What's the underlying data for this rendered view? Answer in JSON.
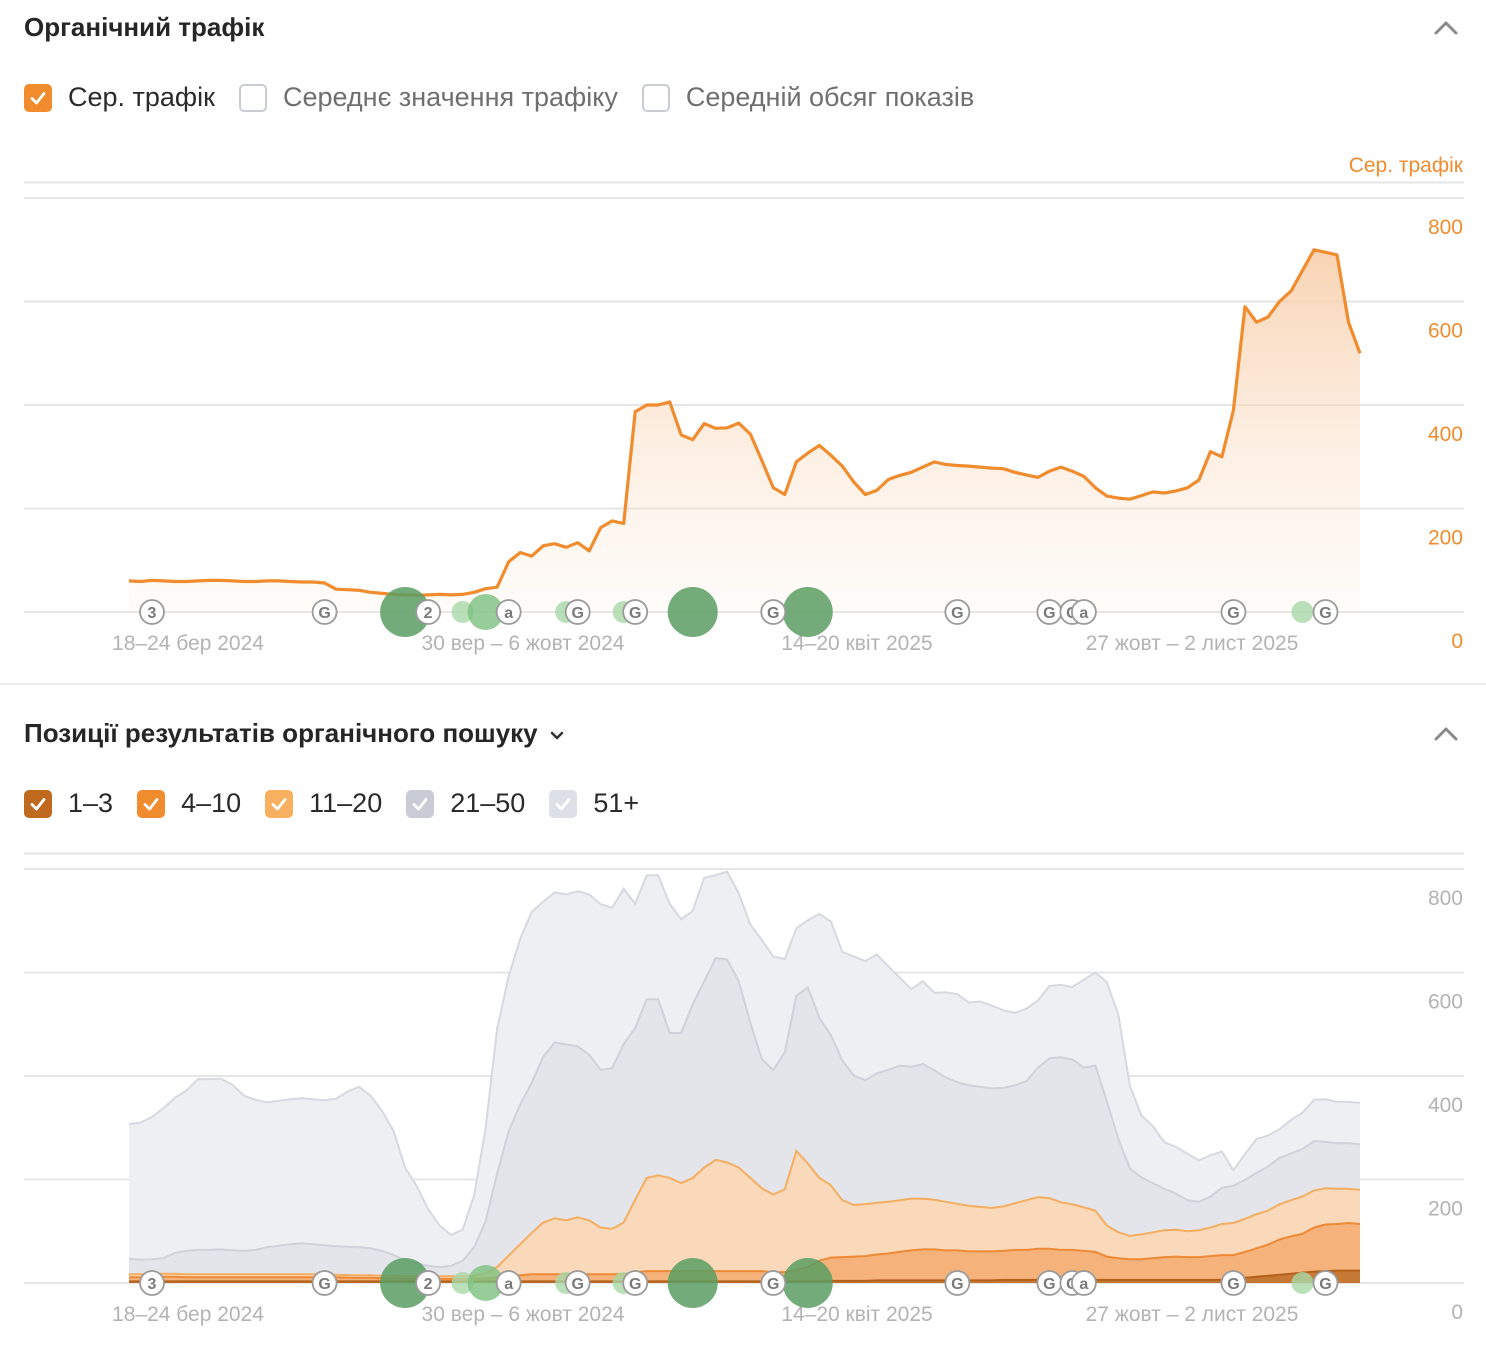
{
  "traffic_section": {
    "title": "Органічний трафік",
    "checkboxes": [
      {
        "label": "Сер. трафік",
        "checked": true,
        "color": "#f08c2e"
      },
      {
        "label": "Середнє значення трафіку",
        "checked": false
      },
      {
        "label": "Середній обсяг показів",
        "checked": false
      }
    ],
    "axis_title": "Сер. трафік"
  },
  "positions_section": {
    "title": "Позиції результатів органічного пошуку",
    "checkboxes": [
      {
        "label": "1–3",
        "checked": true,
        "color": "#c06a1f"
      },
      {
        "label": "4–10",
        "checked": true,
        "color": "#f08c2e"
      },
      {
        "label": "11–20",
        "checked": true,
        "color": "#f7b060"
      },
      {
        "label": "21–50",
        "checked": true,
        "color": "#c9ccd6"
      },
      {
        "label": "51+",
        "checked": true,
        "color": "#dde0e6"
      }
    ]
  },
  "x_ticks": [
    "18–24 бер 2024",
    "30 вер – 6 жовт 2024",
    "14–20 квіт 2025",
    "27 жовт – 2 лист 2025"
  ],
  "y_ticks": [
    "0",
    "200",
    "400",
    "600",
    "800"
  ],
  "markers": [
    {
      "label": "3",
      "kind": "badge",
      "week": 2
    },
    {
      "label": "G",
      "kind": "badge",
      "week": 17
    },
    {
      "label": "",
      "kind": "dot-large",
      "week": 24
    },
    {
      "label": "2",
      "kind": "badge",
      "week": 26
    },
    {
      "label": "",
      "kind": "dot-small",
      "week": 29
    },
    {
      "label": "",
      "kind": "dot-medium",
      "week": 31
    },
    {
      "label": "a",
      "kind": "badge",
      "week": 33
    },
    {
      "label": "",
      "kind": "dot-small",
      "week": 38
    },
    {
      "label": "G",
      "kind": "badge",
      "week": 39
    },
    {
      "label": "",
      "kind": "dot-small",
      "week": 43
    },
    {
      "label": "G",
      "kind": "badge",
      "week": 44
    },
    {
      "label": "",
      "kind": "dot-large",
      "week": 49
    },
    {
      "label": "G",
      "kind": "badge",
      "week": 56
    },
    {
      "label": "",
      "kind": "dot-large",
      "week": 59
    },
    {
      "label": "G",
      "kind": "badge",
      "week": 72
    },
    {
      "label": "G",
      "kind": "badge",
      "week": 80
    },
    {
      "label": "G",
      "kind": "badge",
      "week": 82
    },
    {
      "label": "a",
      "kind": "badge",
      "week": 83
    },
    {
      "label": "G",
      "kind": "badge",
      "week": 96
    },
    {
      "label": "",
      "kind": "dot-small",
      "week": 102
    },
    {
      "label": "G",
      "kind": "badge",
      "week": 104
    }
  ],
  "colors": {
    "accent": "#f08c2e",
    "marker_green": "#5a9e63",
    "grid": "#e8e8e8",
    "axis_text": "#b3b3b3"
  },
  "chart_data": [
    {
      "type": "area",
      "x_start_label": "18–24 бер 2024",
      "x_unit": "week",
      "ylim": [
        0,
        800
      ],
      "series": [
        {
          "name": "Сер. трафік",
          "color": "#f08c2e",
          "values": [
            60,
            59,
            61,
            60,
            59,
            59,
            60,
            61,
            61,
            60,
            59,
            59,
            60,
            60,
            59,
            58,
            58,
            56,
            44,
            43,
            42,
            38,
            36,
            34,
            33,
            32,
            33,
            34,
            33,
            34,
            38,
            45,
            48,
            97,
            115,
            108,
            128,
            132,
            125,
            134,
            118,
            163,
            176,
            171,
            387,
            400,
            400,
            406,
            342,
            333,
            364,
            355,
            356,
            365,
            344,
            293,
            240,
            227,
            290,
            307,
            322,
            303,
            282,
            251,
            227,
            235,
            256,
            264,
            270,
            280,
            290,
            285,
            283,
            282,
            280,
            278,
            277,
            270,
            265,
            260,
            272,
            280,
            272,
            262,
            240,
            224,
            220,
            218,
            225,
            232,
            230,
            234,
            240,
            255,
            310,
            300,
            390,
            590,
            560,
            570,
            600,
            620,
            660,
            700,
            695,
            690,
            560,
            500
          ]
        }
      ]
    },
    {
      "type": "area",
      "stacked": true,
      "x_start_label": "18–24 бер 2024",
      "x_unit": "week",
      "ylim": [
        0,
        800
      ],
      "series": [
        {
          "name": "1–3",
          "color": "#c06a1f",
          "values": [
            3,
            3,
            3,
            3,
            3,
            3,
            3,
            3,
            3,
            3,
            3,
            3,
            3,
            3,
            3,
            3,
            3,
            3,
            3,
            3,
            3,
            3,
            3,
            3,
            3,
            3,
            3,
            3,
            3,
            3,
            3,
            3,
            3,
            3,
            3,
            3,
            3,
            3,
            3,
            3,
            3,
            3,
            3,
            3,
            3,
            3,
            3,
            3,
            3,
            3,
            3,
            3,
            3,
            3,
            3,
            3,
            3,
            3,
            3,
            3,
            3,
            4,
            4,
            4,
            4,
            5,
            5,
            5,
            5,
            5,
            5,
            5,
            5,
            5,
            5,
            5,
            6,
            6,
            6,
            6,
            6,
            6,
            6,
            6,
            6,
            6,
            6,
            6,
            6,
            6,
            6,
            6,
            6,
            6,
            6,
            6,
            8,
            10,
            12,
            14,
            16,
            18,
            20,
            22,
            23,
            24,
            24,
            24
          ]
        },
        {
          "name": "4–10",
          "color": "#f08c2e",
          "values": [
            8,
            8,
            9,
            9,
            9,
            8,
            8,
            8,
            8,
            8,
            8,
            8,
            8,
            8,
            8,
            8,
            8,
            8,
            8,
            7,
            7,
            7,
            6,
            6,
            5,
            5,
            5,
            5,
            5,
            5,
            5,
            6,
            8,
            10,
            12,
            14,
            14,
            14,
            14,
            14,
            14,
            14,
            14,
            14,
            18,
            20,
            20,
            20,
            20,
            20,
            20,
            20,
            20,
            20,
            20,
            20,
            18,
            18,
            22,
            28,
            40,
            45,
            46,
            47,
            48,
            50,
            52,
            55,
            58,
            60,
            60,
            58,
            58,
            56,
            56,
            56,
            56,
            58,
            58,
            60,
            60,
            58,
            58,
            56,
            54,
            45,
            42,
            40,
            40,
            42,
            44,
            45,
            44,
            44,
            46,
            48,
            46,
            50,
            55,
            60,
            68,
            72,
            75,
            85,
            90,
            90,
            92,
            90
          ]
        },
        {
          "name": "11–20",
          "color": "#f7b060",
          "values": [
            6,
            6,
            6,
            6,
            6,
            6,
            6,
            6,
            6,
            6,
            6,
            6,
            6,
            6,
            6,
            6,
            6,
            6,
            5,
            5,
            5,
            5,
            5,
            5,
            5,
            5,
            5,
            5,
            5,
            5,
            6,
            10,
            20,
            40,
            60,
            80,
            100,
            108,
            104,
            110,
            104,
            90,
            88,
            100,
            140,
            180,
            185,
            180,
            170,
            180,
            200,
            215,
            210,
            200,
            180,
            160,
            150,
            160,
            230,
            200,
            160,
            140,
            110,
            100,
            100,
            100,
            100,
            100,
            100,
            98,
            96,
            94,
            90,
            88,
            86,
            84,
            86,
            90,
            96,
            100,
            98,
            92,
            88,
            84,
            80,
            60,
            50,
            45,
            48,
            50,
            52,
            52,
            50,
            52,
            55,
            60,
            62,
            64,
            66,
            66,
            68,
            70,
            72,
            72,
            70,
            68,
            66,
            66
          ]
        },
        {
          "name": "21–50",
          "color": "#c9ccd6",
          "values": [
            30,
            28,
            28,
            30,
            40,
            45,
            47,
            47,
            48,
            46,
            45,
            47,
            52,
            55,
            58,
            60,
            58,
            56,
            55,
            55,
            54,
            52,
            48,
            40,
            30,
            25,
            20,
            18,
            20,
            30,
            55,
            100,
            180,
            240,
            270,
            290,
            320,
            340,
            340,
            330,
            320,
            305,
            310,
            345,
            332,
            345,
            340,
            280,
            290,
            336,
            360,
            390,
            392,
            360,
            300,
            250,
            240,
            265,
            300,
            340,
            310,
            290,
            270,
            250,
            240,
            250,
            255,
            260,
            255,
            260,
            250,
            240,
            235,
            233,
            232,
            231,
            229,
            228,
            230,
            250,
            270,
            280,
            280,
            270,
            280,
            240,
            180,
            130,
            110,
            95,
            80,
            70,
            60,
            55,
            60,
            70,
            72,
            75,
            80,
            85,
            90,
            90,
            92,
            95,
            90,
            88,
            88,
            88
          ]
        },
        {
          "name": "51+",
          "color": "#dde0e6",
          "values": [
            260,
            265,
            275,
            290,
            300,
            310,
            330,
            330,
            330,
            320,
            300,
            290,
            280,
            280,
            280,
            280,
            280,
            280,
            285,
            300,
            310,
            295,
            270,
            240,
            180,
            150,
            110,
            80,
            60,
            60,
            100,
            180,
            280,
            300,
            320,
            330,
            300,
            290,
            290,
            300,
            310,
            320,
            310,
            300,
            240,
            240,
            240,
            250,
            220,
            180,
            200,
            160,
            170,
            170,
            190,
            230,
            220,
            180,
            130,
            130,
            200,
            220,
            210,
            230,
            230,
            230,
            200,
            170,
            150,
            160,
            150,
            165,
            170,
            160,
            165,
            160,
            150,
            140,
            140,
            130,
            140,
            140,
            140,
            170,
            180,
            230,
            240,
            160,
            120,
            110,
            90,
            90,
            90,
            80,
            80,
            70,
            30,
            50,
            65,
            60,
            55,
            65,
            70,
            80,
            82,
            80,
            80,
            80
          ]
        }
      ]
    }
  ]
}
